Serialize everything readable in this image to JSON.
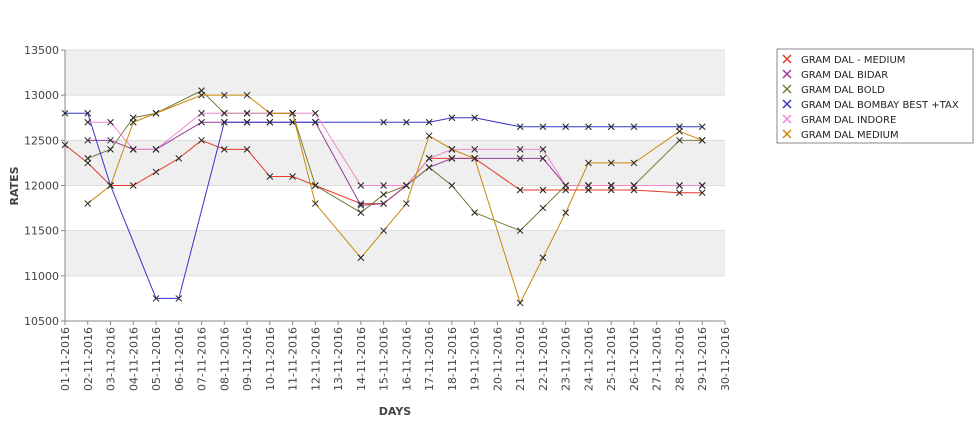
{
  "chart_data": {
    "type": "line",
    "xlabel": "DAYS",
    "ylabel": "RATES",
    "ylim": [
      10500,
      13500
    ],
    "yticks": [
      10500,
      11000,
      11500,
      12000,
      12500,
      13000,
      13500
    ],
    "categories": [
      "01-11-2016",
      "02-11-2016",
      "03-11-2016",
      "04-11-2016",
      "05-11-2016",
      "06-11-2016",
      "07-11-2016",
      "08-11-2016",
      "09-11-2016",
      "10-11-2016",
      "11-11-2016",
      "12-11-2016",
      "13-11-2016",
      "14-11-2016",
      "15-11-2016",
      "16-11-2016",
      "17-11-2016",
      "18-11-2016",
      "19-11-2016",
      "20-11-2016",
      "21-11-2016",
      "22-11-2016",
      "23-11-2016",
      "24-11-2016",
      "25-11-2016",
      "26-11-2016",
      "27-11-2016",
      "28-11-2016",
      "29-11-2016",
      "30-11-2016"
    ],
    "grid": true,
    "legend_position": "top-right",
    "series": [
      {
        "name": "GRAM DAL - MEDIUM",
        "color": "#e23a2a",
        "values": [
          12450,
          12250,
          12000,
          12000,
          12150,
          12300,
          12500,
          12400,
          12400,
          12100,
          12100,
          12000,
          null,
          11800,
          11800,
          12000,
          12300,
          12300,
          12300,
          null,
          11950,
          11950,
          11950,
          11950,
          11950,
          11950,
          null,
          11920,
          11920,
          null
        ]
      },
      {
        "name": "GRAM DAL BIDAR",
        "color": "#9b3a9b",
        "values": [
          null,
          12500,
          12500,
          12400,
          12400,
          null,
          12700,
          12700,
          12700,
          12700,
          12700,
          12700,
          null,
          11780,
          11800,
          12000,
          12200,
          12300,
          12300,
          null,
          12300,
          12300,
          12000,
          12000,
          12000,
          12000,
          null,
          12000,
          12000,
          null
        ]
      },
      {
        "name": "GRAM DAL BOLD",
        "color": "#7a7a3a",
        "values": [
          null,
          12300,
          12400,
          12750,
          12800,
          null,
          13050,
          12800,
          12800,
          12800,
          12800,
          12000,
          null,
          11700,
          11900,
          12000,
          12200,
          12000,
          11700,
          null,
          11500,
          11750,
          12000,
          12000,
          12000,
          12000,
          null,
          12500,
          12500,
          null
        ]
      },
      {
        "name": "GRAM DAL BOMBAY BEST +TAX",
        "color": "#3535c8",
        "values": [
          12800,
          12800,
          12000,
          null,
          10750,
          10750,
          null,
          12700,
          12700,
          12700,
          12700,
          12700,
          null,
          null,
          12700,
          12700,
          12700,
          12750,
          12750,
          null,
          12650,
          12650,
          12650,
          12650,
          12650,
          12650,
          null,
          12650,
          12650,
          null
        ]
      },
      {
        "name": "GRAM DAL INDORE",
        "color": "#ee88cc",
        "values": [
          null,
          12700,
          12700,
          12400,
          12400,
          null,
          12800,
          12800,
          12800,
          12800,
          12800,
          12800,
          null,
          12000,
          12000,
          12000,
          12300,
          12400,
          12400,
          null,
          12400,
          12400,
          12000,
          12000,
          12000,
          12000,
          null,
          12000,
          12000,
          null
        ]
      },
      {
        "name": "GRAM DAL MEDIUM",
        "color": "#c8880a",
        "values": [
          null,
          11800,
          12000,
          12700,
          12800,
          null,
          13000,
          13000,
          13000,
          12800,
          12800,
          11800,
          null,
          11200,
          11500,
          11800,
          12550,
          12400,
          12300,
          null,
          10700,
          11200,
          11700,
          12250,
          12250,
          12250,
          null,
          12600,
          12500,
          null
        ]
      }
    ]
  }
}
